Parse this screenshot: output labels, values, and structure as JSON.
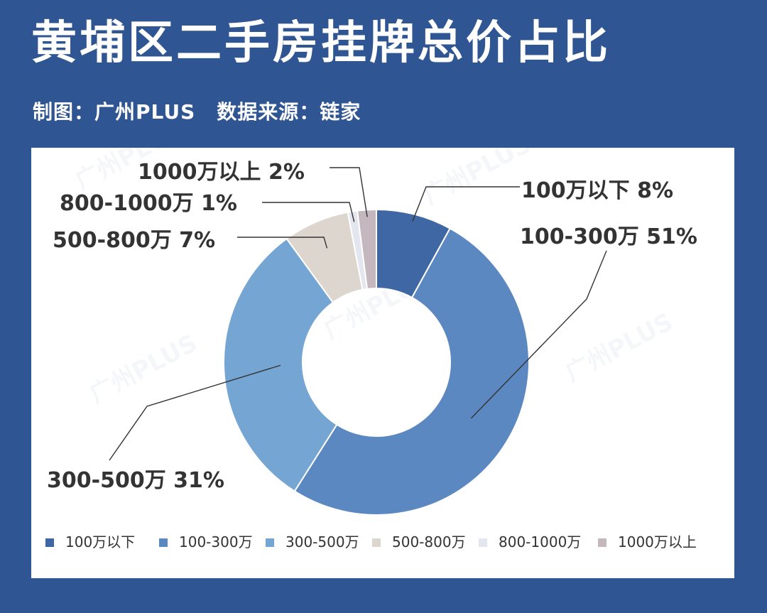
{
  "header": {
    "title": "黄埔区二手房挂牌总价占比",
    "credit": "制图：广州PLUS",
    "source": "数据来源：链家"
  },
  "chart_data": {
    "type": "pie",
    "donut": true,
    "start_angle_deg": 0,
    "series": [
      {
        "name": "100万以下",
        "value": 8,
        "label": "100万以下  8%",
        "color": "#3f67a3"
      },
      {
        "name": "100-300万",
        "value": 51,
        "label": "100-300万  51%",
        "color": "#5b88c1"
      },
      {
        "name": "300-500万",
        "value": 31,
        "label": "300-500万  31%",
        "color": "#74a5d3"
      },
      {
        "name": "500-800万",
        "value": 7,
        "label": "500-800万  7%",
        "color": "#dcd6cf"
      },
      {
        "name": "800-1000万",
        "value": 1,
        "label": "800-1000万  1%",
        "color": "#e3e5ef"
      },
      {
        "name": "1000万以上",
        "value": 2,
        "label": "1000万以上  2%",
        "color": "#c4b8be"
      }
    ],
    "legend_position": "bottom",
    "watermark": "广州PLUS"
  }
}
